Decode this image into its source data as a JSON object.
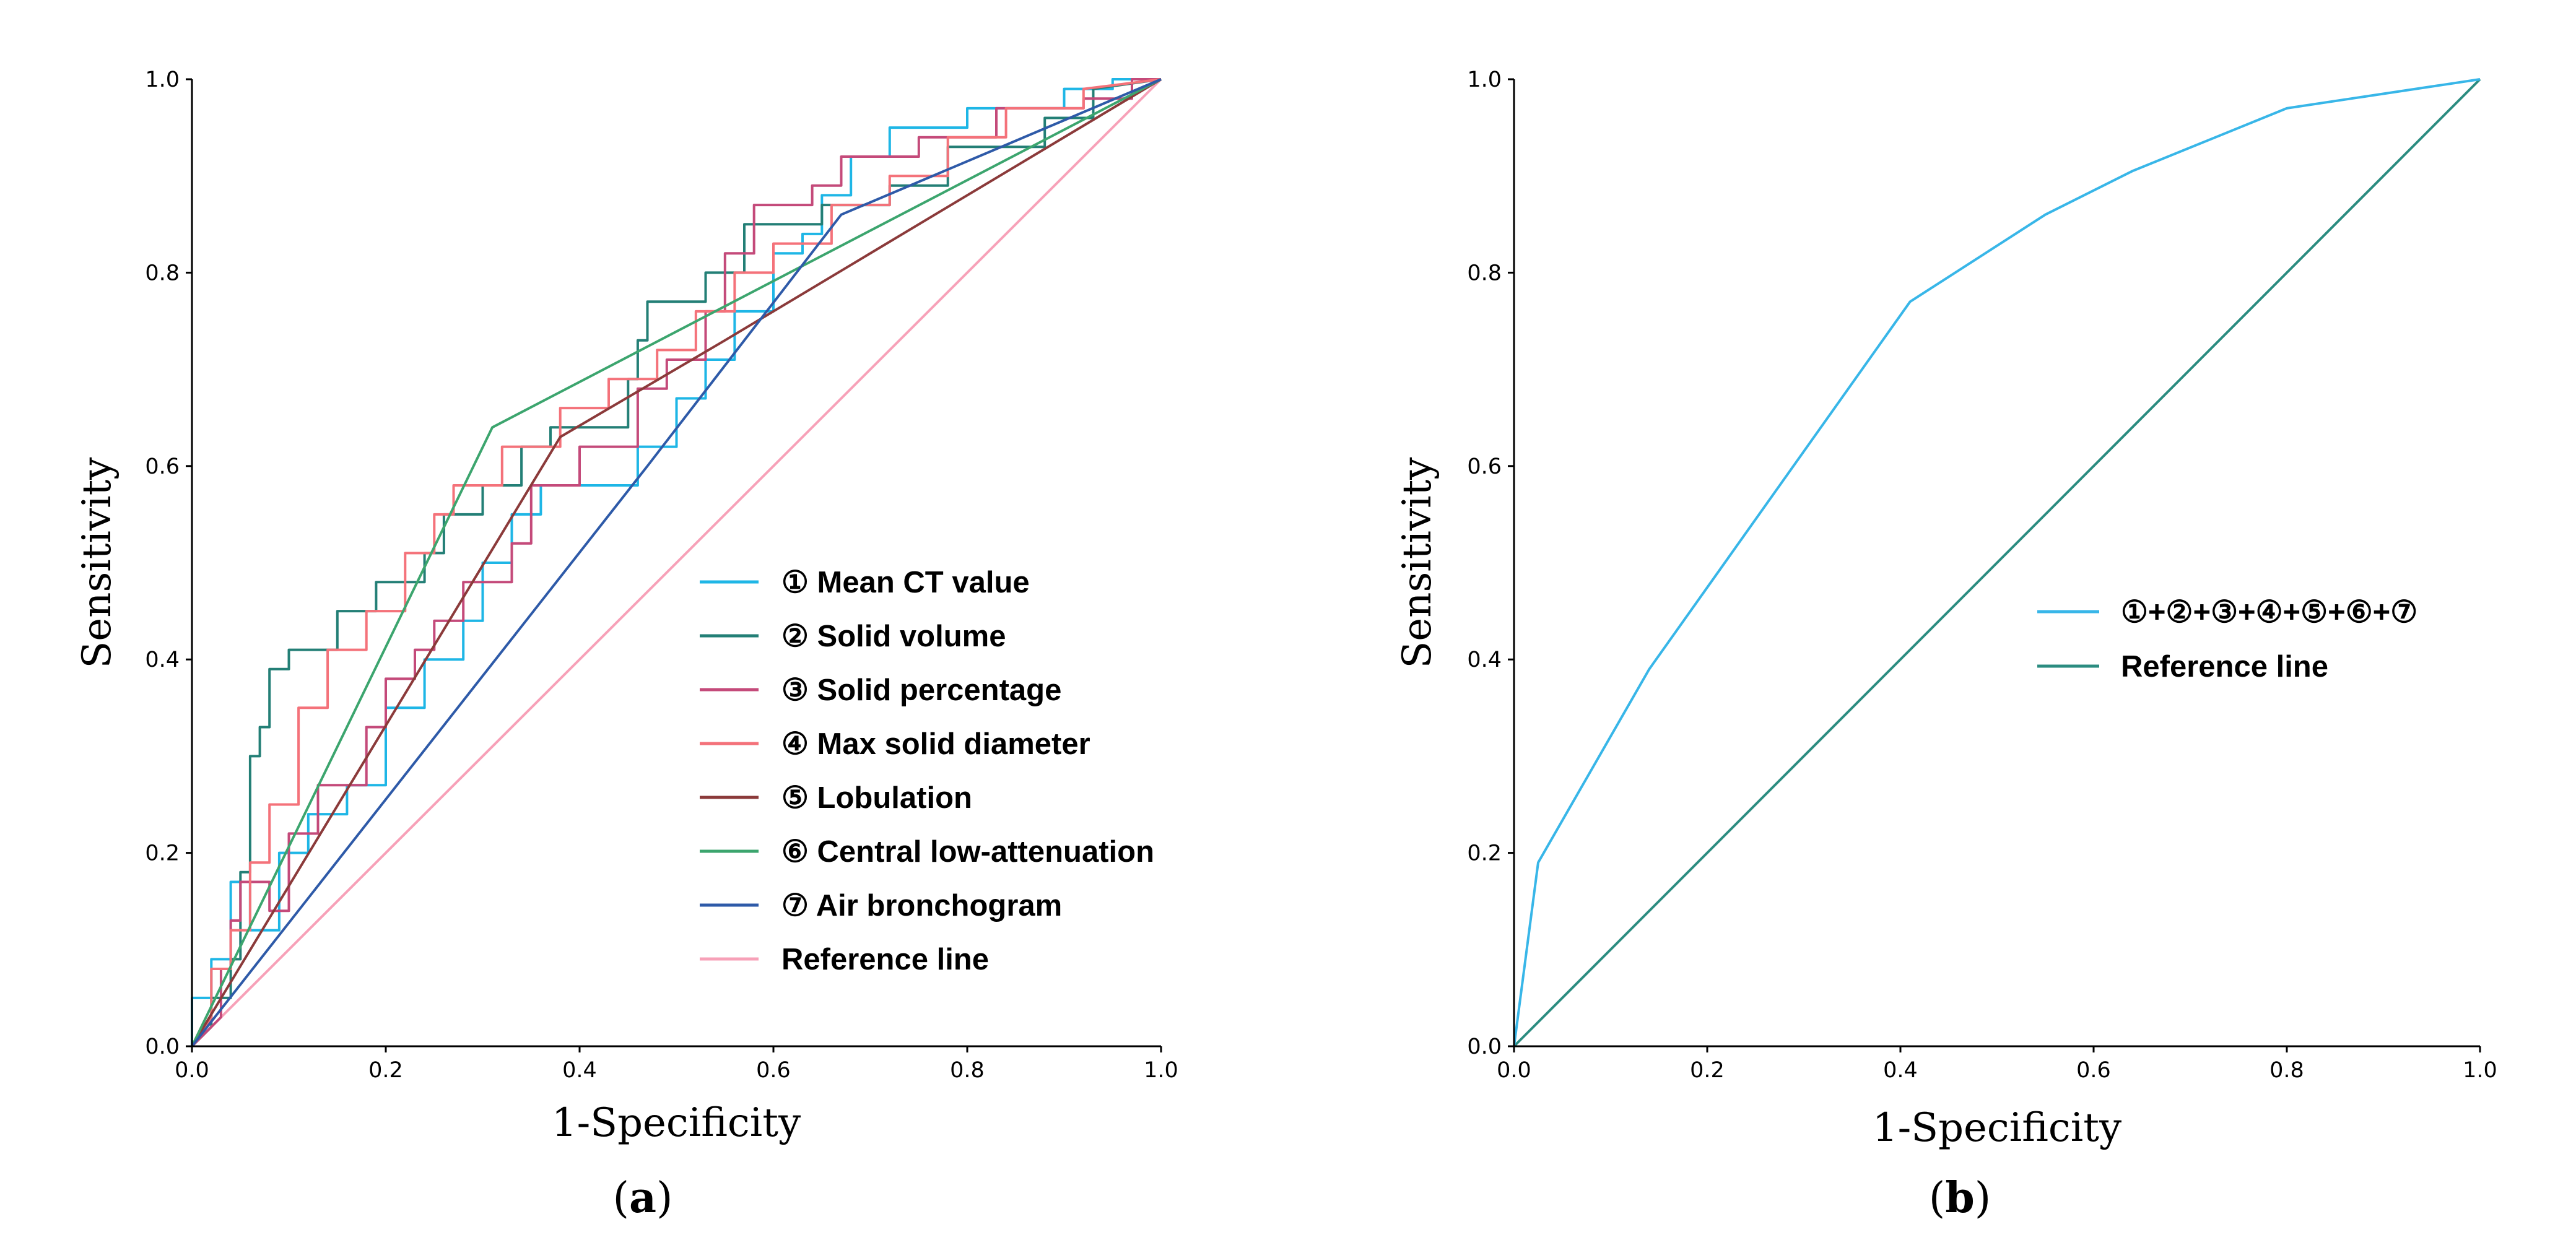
{
  "chart_data": [
    {
      "type": "line",
      "panel_label": "a",
      "xlabel": "1-Specificity",
      "ylabel": "Sensitivity",
      "xlim": [
        0,
        1
      ],
      "ylim": [
        0,
        1
      ],
      "xticks": [
        "0.0",
        "0.2",
        "0.4",
        "0.6",
        "0.8",
        "1.0"
      ],
      "yticks": [
        "0.0",
        "0.2",
        "0.4",
        "0.6",
        "0.8",
        "1.0"
      ],
      "legend_position": "bottom-right",
      "series": [
        {
          "name": "① Mean CT value",
          "color": "#1eb6e6",
          "step": true,
          "points": [
            [
              0,
              0
            ],
            [
              0,
              0.05
            ],
            [
              0.02,
              0.05
            ],
            [
              0.02,
              0.09
            ],
            [
              0.04,
              0.09
            ],
            [
              0.04,
              0.17
            ],
            [
              0.06,
              0.17
            ],
            [
              0.06,
              0.12
            ],
            [
              0.09,
              0.12
            ],
            [
              0.09,
              0.2
            ],
            [
              0.12,
              0.2
            ],
            [
              0.12,
              0.24
            ],
            [
              0.16,
              0.24
            ],
            [
              0.16,
              0.27
            ],
            [
              0.2,
              0.27
            ],
            [
              0.2,
              0.35
            ],
            [
              0.24,
              0.35
            ],
            [
              0.24,
              0.4
            ],
            [
              0.28,
              0.4
            ],
            [
              0.28,
              0.44
            ],
            [
              0.3,
              0.44
            ],
            [
              0.3,
              0.5
            ],
            [
              0.33,
              0.5
            ],
            [
              0.33,
              0.55
            ],
            [
              0.36,
              0.55
            ],
            [
              0.36,
              0.58
            ],
            [
              0.46,
              0.58
            ],
            [
              0.46,
              0.62
            ],
            [
              0.5,
              0.62
            ],
            [
              0.5,
              0.67
            ],
            [
              0.53,
              0.67
            ],
            [
              0.53,
              0.71
            ],
            [
              0.56,
              0.71
            ],
            [
              0.56,
              0.76
            ],
            [
              0.6,
              0.76
            ],
            [
              0.6,
              0.82
            ],
            [
              0.63,
              0.82
            ],
            [
              0.63,
              0.84
            ],
            [
              0.65,
              0.84
            ],
            [
              0.65,
              0.88
            ],
            [
              0.68,
              0.88
            ],
            [
              0.68,
              0.92
            ],
            [
              0.72,
              0.92
            ],
            [
              0.72,
              0.95
            ],
            [
              0.8,
              0.95
            ],
            [
              0.8,
              0.97
            ],
            [
              0.9,
              0.97
            ],
            [
              0.9,
              0.99
            ],
            [
              0.95,
              0.99
            ],
            [
              0.95,
              1.0
            ],
            [
              1.0,
              1.0
            ]
          ]
        },
        {
          "name": "② Solid volume",
          "color": "#237f76",
          "step": true,
          "points": [
            [
              0,
              0
            ],
            [
              0.02,
              0.02
            ],
            [
              0.02,
              0.05
            ],
            [
              0.04,
              0.05
            ],
            [
              0.04,
              0.09
            ],
            [
              0.05,
              0.09
            ],
            [
              0.05,
              0.18
            ],
            [
              0.06,
              0.18
            ],
            [
              0.06,
              0.3
            ],
            [
              0.07,
              0.3
            ],
            [
              0.07,
              0.33
            ],
            [
              0.08,
              0.33
            ],
            [
              0.08,
              0.39
            ],
            [
              0.1,
              0.39
            ],
            [
              0.1,
              0.41
            ],
            [
              0.15,
              0.41
            ],
            [
              0.15,
              0.45
            ],
            [
              0.19,
              0.45
            ],
            [
              0.19,
              0.48
            ],
            [
              0.24,
              0.48
            ],
            [
              0.24,
              0.51
            ],
            [
              0.26,
              0.51
            ],
            [
              0.26,
              0.55
            ],
            [
              0.3,
              0.55
            ],
            [
              0.3,
              0.58
            ],
            [
              0.34,
              0.58
            ],
            [
              0.34,
              0.62
            ],
            [
              0.37,
              0.62
            ],
            [
              0.37,
              0.64
            ],
            [
              0.45,
              0.64
            ],
            [
              0.45,
              0.69
            ],
            [
              0.46,
              0.69
            ],
            [
              0.46,
              0.73
            ],
            [
              0.47,
              0.73
            ],
            [
              0.47,
              0.77
            ],
            [
              0.53,
              0.77
            ],
            [
              0.53,
              0.8
            ],
            [
              0.57,
              0.8
            ],
            [
              0.57,
              0.85
            ],
            [
              0.65,
              0.85
            ],
            [
              0.65,
              0.87
            ],
            [
              0.72,
              0.87
            ],
            [
              0.72,
              0.89
            ],
            [
              0.78,
              0.89
            ],
            [
              0.78,
              0.93
            ],
            [
              0.88,
              0.93
            ],
            [
              0.88,
              0.96
            ],
            [
              0.93,
              0.96
            ],
            [
              0.93,
              0.99
            ],
            [
              1.0,
              1.0
            ]
          ]
        },
        {
          "name": "③ Solid percentage",
          "color": "#c44a7a",
          "step": true,
          "points": [
            [
              0,
              0
            ],
            [
              0.03,
              0.03
            ],
            [
              0.03,
              0.08
            ],
            [
              0.04,
              0.08
            ],
            [
              0.04,
              0.13
            ],
            [
              0.05,
              0.13
            ],
            [
              0.05,
              0.17
            ],
            [
              0.08,
              0.17
            ],
            [
              0.08,
              0.14
            ],
            [
              0.1,
              0.14
            ],
            [
              0.1,
              0.22
            ],
            [
              0.13,
              0.22
            ],
            [
              0.13,
              0.27
            ],
            [
              0.18,
              0.27
            ],
            [
              0.18,
              0.33
            ],
            [
              0.2,
              0.33
            ],
            [
              0.2,
              0.38
            ],
            [
              0.23,
              0.38
            ],
            [
              0.23,
              0.41
            ],
            [
              0.25,
              0.41
            ],
            [
              0.25,
              0.44
            ],
            [
              0.28,
              0.44
            ],
            [
              0.28,
              0.48
            ],
            [
              0.33,
              0.48
            ],
            [
              0.33,
              0.52
            ],
            [
              0.35,
              0.52
            ],
            [
              0.35,
              0.58
            ],
            [
              0.4,
              0.58
            ],
            [
              0.4,
              0.62
            ],
            [
              0.46,
              0.62
            ],
            [
              0.46,
              0.68
            ],
            [
              0.49,
              0.68
            ],
            [
              0.49,
              0.71
            ],
            [
              0.53,
              0.71
            ],
            [
              0.53,
              0.76
            ],
            [
              0.55,
              0.76
            ],
            [
              0.55,
              0.82
            ],
            [
              0.58,
              0.82
            ],
            [
              0.58,
              0.87
            ],
            [
              0.64,
              0.87
            ],
            [
              0.64,
              0.89
            ],
            [
              0.67,
              0.89
            ],
            [
              0.67,
              0.92
            ],
            [
              0.75,
              0.92
            ],
            [
              0.75,
              0.94
            ],
            [
              0.83,
              0.94
            ],
            [
              0.83,
              0.97
            ],
            [
              0.92,
              0.97
            ],
            [
              0.92,
              0.98
            ],
            [
              0.97,
              0.98
            ],
            [
              0.97,
              1.0
            ],
            [
              1.0,
              1.0
            ]
          ]
        },
        {
          "name": "④ Max solid diameter",
          "color": "#f4727a",
          "step": true,
          "points": [
            [
              0,
              0
            ],
            [
              0.02,
              0.03
            ],
            [
              0.02,
              0.08
            ],
            [
              0.04,
              0.08
            ],
            [
              0.04,
              0.12
            ],
            [
              0.06,
              0.12
            ],
            [
              0.06,
              0.19
            ],
            [
              0.08,
              0.19
            ],
            [
              0.08,
              0.25
            ],
            [
              0.11,
              0.25
            ],
            [
              0.11,
              0.35
            ],
            [
              0.14,
              0.35
            ],
            [
              0.14,
              0.41
            ],
            [
              0.18,
              0.41
            ],
            [
              0.18,
              0.45
            ],
            [
              0.22,
              0.45
            ],
            [
              0.22,
              0.51
            ],
            [
              0.25,
              0.51
            ],
            [
              0.25,
              0.55
            ],
            [
              0.27,
              0.55
            ],
            [
              0.27,
              0.58
            ],
            [
              0.32,
              0.58
            ],
            [
              0.32,
              0.62
            ],
            [
              0.38,
              0.62
            ],
            [
              0.38,
              0.66
            ],
            [
              0.43,
              0.66
            ],
            [
              0.43,
              0.69
            ],
            [
              0.48,
              0.69
            ],
            [
              0.48,
              0.72
            ],
            [
              0.52,
              0.72
            ],
            [
              0.52,
              0.76
            ],
            [
              0.56,
              0.76
            ],
            [
              0.56,
              0.8
            ],
            [
              0.6,
              0.8
            ],
            [
              0.6,
              0.83
            ],
            [
              0.66,
              0.83
            ],
            [
              0.66,
              0.87
            ],
            [
              0.72,
              0.87
            ],
            [
              0.72,
              0.9
            ],
            [
              0.78,
              0.9
            ],
            [
              0.78,
              0.94
            ],
            [
              0.84,
              0.94
            ],
            [
              0.84,
              0.97
            ],
            [
              0.92,
              0.97
            ],
            [
              0.92,
              0.99
            ],
            [
              1.0,
              1.0
            ]
          ]
        },
        {
          "name": "⑤ Lobulation",
          "color": "#8b3a3a",
          "step": false,
          "points": [
            [
              0,
              0
            ],
            [
              0.38,
              0.63
            ],
            [
              0.55,
              0.73
            ],
            [
              1.0,
              1.0
            ]
          ]
        },
        {
          "name": "⑥ Central low-attenuation",
          "color": "#3ca56e",
          "step": false,
          "points": [
            [
              0,
              0
            ],
            [
              0.31,
              0.64
            ],
            [
              1.0,
              1.0
            ]
          ]
        },
        {
          "name": "⑦ Air bronchogram",
          "color": "#2e5aa8",
          "step": false,
          "points": [
            [
              0,
              0
            ],
            [
              0.47,
              0.6
            ],
            [
              0.67,
              0.86
            ],
            [
              1.0,
              1.0
            ]
          ]
        },
        {
          "name": "Reference line",
          "color": "#f7a1b8",
          "step": false,
          "points": [
            [
              0,
              0
            ],
            [
              1.0,
              1.0
            ]
          ]
        }
      ]
    },
    {
      "type": "line",
      "panel_label": "b",
      "xlabel": "1-Specificity",
      "ylabel": "Sensitivity",
      "xlim": [
        0,
        1
      ],
      "ylim": [
        0,
        1
      ],
      "xticks": [
        "0.0",
        "0.2",
        "0.4",
        "0.6",
        "0.8",
        "1.0"
      ],
      "yticks": [
        "0.0",
        "0.2",
        "0.4",
        "0.6",
        "0.8",
        "1.0"
      ],
      "legend_position": "center-right",
      "series": [
        {
          "name": "①+②+③+④+⑤+⑥+⑦",
          "color": "#38b6e8",
          "step": false,
          "points": [
            [
              0,
              0
            ],
            [
              0.025,
              0.19
            ],
            [
              0.14,
              0.39
            ],
            [
              0.41,
              0.77
            ],
            [
              0.55,
              0.86
            ],
            [
              0.64,
              0.905
            ],
            [
              0.8,
              0.97
            ],
            [
              1.0,
              1.0
            ]
          ]
        },
        {
          "name": "Reference line",
          "color": "#2b8c80",
          "step": false,
          "points": [
            [
              0,
              0
            ],
            [
              1.0,
              1.0
            ]
          ]
        }
      ]
    }
  ]
}
